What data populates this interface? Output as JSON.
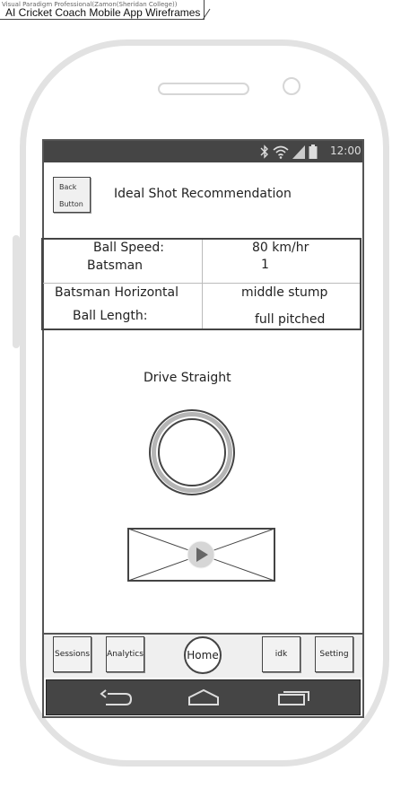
{
  "frame": {
    "subtitle": "Visual Paradigm Professional(Zamon(Sheridan College))",
    "title": "AI Cricket Coach Mobile App Wireframes"
  },
  "status_bar": {
    "time": "12:00",
    "icons": [
      "bluetooth-icon",
      "wifi-icon",
      "signal-icon",
      "battery-icon"
    ]
  },
  "header": {
    "back_button_line1": "Back",
    "back_button_line2": "Button",
    "title": "Ideal Shot Recommendation"
  },
  "info": {
    "ball_speed_label": "Ball Speed:",
    "ball_speed_value": "80 km/hr",
    "batsman_label": "Batsman",
    "batsman_value": "1",
    "horizontal_label": "Batsman Horizontal",
    "horizontal_value": "middle stump",
    "ball_length_label": "Ball Length:",
    "ball_length_value": "full pitched"
  },
  "shot": {
    "label": "Drive Straight"
  },
  "nav": {
    "sessions": "Sessions",
    "analytics": "Analytics",
    "home": "Home",
    "idk": "idk",
    "setting": "Setting"
  },
  "colors": {
    "bar_dark": "#454545",
    "phone_frame": "#e2e2e2",
    "outline": "#444444"
  }
}
